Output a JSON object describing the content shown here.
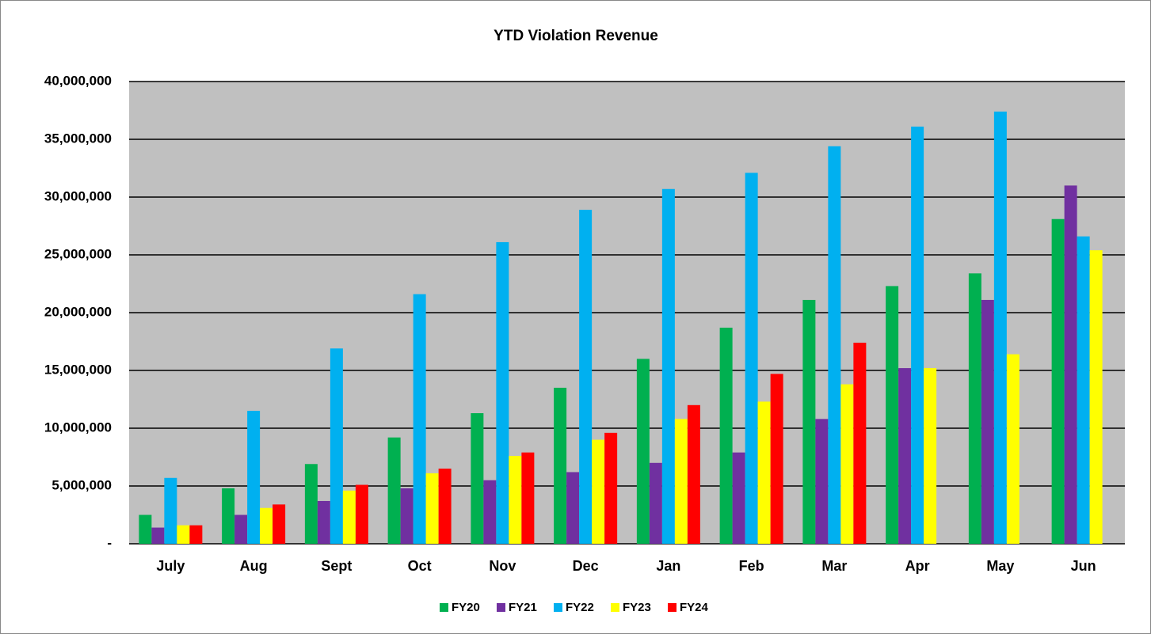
{
  "chart_data": {
    "type": "bar",
    "title": "YTD Violation Revenue",
    "categories": [
      "July",
      "Aug",
      "Sept",
      "Oct",
      "Nov",
      "Dec",
      "Jan",
      "Feb",
      "Mar",
      "Apr",
      "May",
      "Jun"
    ],
    "series": [
      {
        "name": "FY20",
        "color": "#00b050",
        "values": [
          2500000,
          4800000,
          6900000,
          9200000,
          11300000,
          13500000,
          16000000,
          18700000,
          21100000,
          22300000,
          23400000,
          28100000
        ]
      },
      {
        "name": "FY21",
        "color": "#7030a0",
        "values": [
          1400000,
          2500000,
          3700000,
          4800000,
          5500000,
          6200000,
          7000000,
          7900000,
          10800000,
          15200000,
          21100000,
          31000000
        ]
      },
      {
        "name": "FY22",
        "color": "#00b0f0",
        "values": [
          5700000,
          11500000,
          16900000,
          21600000,
          26100000,
          28900000,
          30700000,
          32100000,
          34400000,
          36100000,
          37400000,
          26600000
        ]
      },
      {
        "name": "FY23",
        "color": "#ffff00",
        "values": [
          1600000,
          3100000,
          4600000,
          6100000,
          7600000,
          9000000,
          10800000,
          12300000,
          13800000,
          15200000,
          16400000,
          25400000
        ]
      },
      {
        "name": "FY24",
        "color": "#ff0000",
        "values": [
          1600000,
          3400000,
          5100000,
          6500000,
          7900000,
          9600000,
          12000000,
          14700000,
          17400000,
          null,
          null,
          null
        ]
      }
    ],
    "ylim": [
      0,
      40000000
    ],
    "yticks": [
      {
        "value": 0,
        "label": "-"
      },
      {
        "value": 5000000,
        "label": "5,000,000"
      },
      {
        "value": 10000000,
        "label": "10,000,000"
      },
      {
        "value": 15000000,
        "label": "15,000,000"
      },
      {
        "value": 20000000,
        "label": "20,000,000"
      },
      {
        "value": 25000000,
        "label": "25,000,000"
      },
      {
        "value": 30000000,
        "label": "30,000,000"
      },
      {
        "value": 35000000,
        "label": "35,000,000"
      },
      {
        "value": 40000000,
        "label": "40,000,000"
      }
    ],
    "grid": true,
    "plot_background": "#c0c0c0",
    "legend": "bottom"
  }
}
